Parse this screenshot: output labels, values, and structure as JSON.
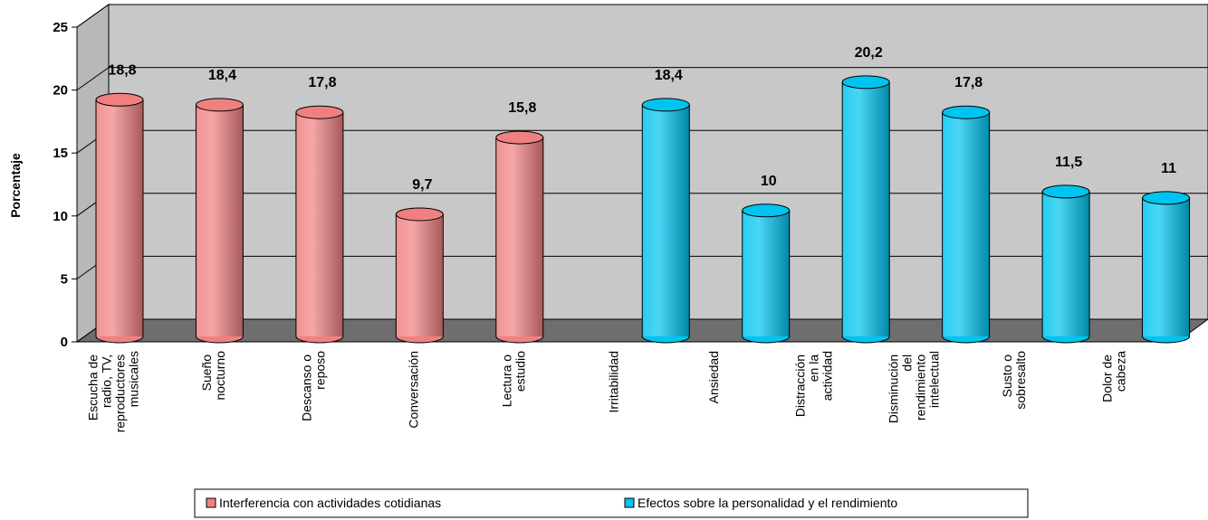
{
  "chart_data": {
    "type": "bar3d",
    "y_label": "Porcentaje",
    "categories": [
      "Escucha de radio, TV, reproductores musicales",
      "Sueño nocturno",
      "Descanso o reposo",
      "Conversación",
      "Lectura o estudio",
      "Irritabilidad",
      "Ansiedad",
      "Distracción en la actividad",
      "Disminución del rendimiento intelectual",
      "Susto o sobresalto",
      "Dolor de cabeza"
    ],
    "series": [
      {
        "name": "Interferencia con actividades cotidianas",
        "color": "#f08080",
        "values": [
          18.8,
          18.4,
          17.8,
          9.7,
          15.8,
          null,
          null,
          null,
          null,
          null,
          null
        ],
        "value_labels": [
          "18,8",
          "18,4",
          "17,8",
          "9,7",
          "15,8",
          null,
          null,
          null,
          null,
          null,
          null
        ]
      },
      {
        "name": "Efectos sobre la personalidad y el rendimiento",
        "color": "#00c4f0",
        "values": [
          null,
          null,
          null,
          null,
          null,
          18.4,
          10,
          20.2,
          17.8,
          11.5,
          11
        ],
        "value_labels": [
          null,
          null,
          null,
          null,
          null,
          "18,4",
          "10",
          "20,2",
          "17,8",
          "11,5",
          "11"
        ]
      }
    ],
    "ylim": [
      0,
      25
    ],
    "yticks": [
      0,
      5,
      10,
      15,
      20,
      25
    ],
    "grid": true,
    "legend": "bottom"
  }
}
